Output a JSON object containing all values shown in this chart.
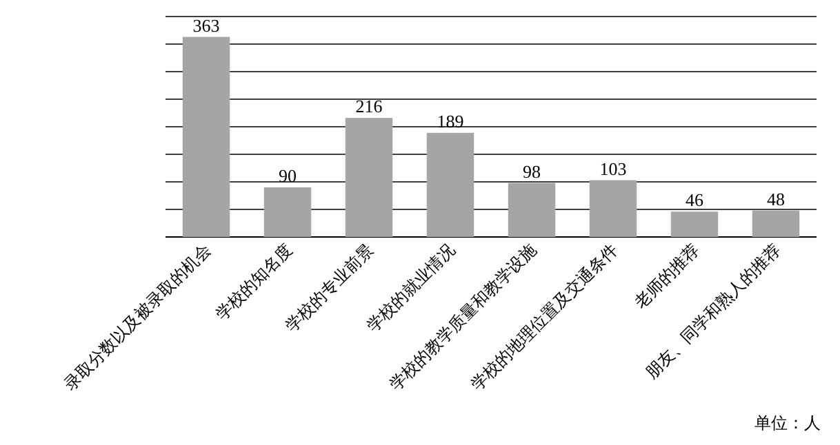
{
  "chart_data": {
    "type": "bar",
    "categories": [
      "录取分数以及被录取的机会",
      "学校的知名度",
      "学校的专业前景",
      "学校的就业情况",
      "学校的教学质量和教学设施",
      "学校的地理位置及交通条件",
      "老师的推荐",
      "朋友、同学和熟人的推荐"
    ],
    "values": [
      363,
      90,
      216,
      189,
      98,
      103,
      46,
      48
    ],
    "color": "#a5a5a5",
    "ylim": [
      0,
      400
    ],
    "yticks": [
      {
        "value": 0,
        "label": null
      },
      {
        "value": 50,
        "label": null
      },
      {
        "value": 100,
        "label": null
      },
      {
        "value": 150,
        "label": null
      },
      {
        "value": 200,
        "label": null
      },
      {
        "value": 250,
        "label": null
      },
      {
        "value": 300,
        "label": null
      },
      {
        "value": 350,
        "label": null
      },
      {
        "value": 400,
        "label": null
      }
    ],
    "grid": "y",
    "data_labels": true,
    "annotations": [
      "单位：人"
    ]
  }
}
